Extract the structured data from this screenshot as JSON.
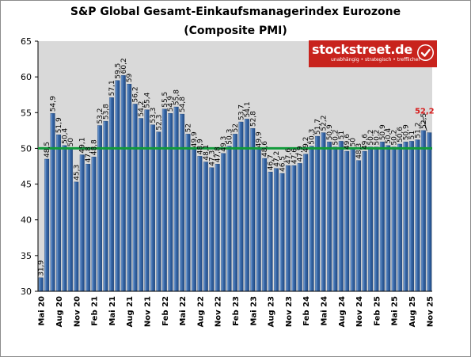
{
  "page": {
    "title_line1": "S&P Global Gesamt-Einkaufsmanagerindex Eurozone",
    "title_line2": "(Composite PMI)"
  },
  "logo": {
    "name": "stockstreet.de",
    "tagline": "unabhängig • strategisch • trefflicher",
    "check_icon": "checkmark-icon"
  },
  "colors": {
    "bar": "#3f6fae",
    "bar_highlight": "#8fb4e3",
    "plot_bg": "#d9d9d9",
    "threshold_line": "#119a3a",
    "last_label": "#d71b1b",
    "brand": "#c8231d"
  },
  "chart_data": {
    "type": "bar",
    "title": "S&P Global Gesamt-Einkaufsmanagerindex Eurozone (Composite PMI)",
    "xlabel": "",
    "ylabel": "",
    "ylim": [
      30,
      65
    ],
    "yticks": [
      30,
      35,
      40,
      45,
      50,
      55,
      60,
      65
    ],
    "grid": false,
    "reference_line": 50,
    "months": [
      "Mai 20",
      "Jun 20",
      "Jul 20",
      "Aug 20",
      "Sep 20",
      "Okt 20",
      "Nov 20",
      "Dez 20",
      "Jan 21",
      "Feb 21",
      "Mrz 21",
      "Apr 21",
      "Mai 21",
      "Jun 21",
      "Jul 21",
      "Aug 21",
      "Sep 21",
      "Okt 21",
      "Nov 21",
      "Dez 21",
      "Jan 22",
      "Feb 22",
      "Mrz 22",
      "Apr 22",
      "Mai 22",
      "Jun 22",
      "Jul 22",
      "Aug 22",
      "Sep 22",
      "Okt 22",
      "Nov 22",
      "Dez 22",
      "Jan 23",
      "Feb 23",
      "Mrz 23",
      "Apr 23",
      "Mai 23",
      "Jun 23",
      "Jul 23",
      "Aug 23",
      "Sep 23",
      "Okt 23",
      "Nov 23",
      "Dez 23",
      "Jan 24",
      "Feb 24",
      "Mrz 24",
      "Apr 24",
      "Mai 24",
      "Jun 24",
      "Jul 24",
      "Aug 24",
      "Sep 24",
      "Okt 24",
      "Nov 24",
      "Dez 24",
      "Jan 25",
      "Feb 25",
      "Mrz 25",
      "Apr 25",
      "Mai 25",
      "Jun 25",
      "Jul 25",
      "Aug 25",
      "Sep 25",
      "Okt 25",
      "Nov 25"
    ],
    "x_tick_labels": [
      "Mai 20",
      "Aug 20",
      "Nov 20",
      "Feb 21",
      "Mai 21",
      "Aug 21",
      "Nov 21",
      "Feb 22",
      "Mai 22",
      "Aug 22",
      "Nov 22",
      "Feb 23",
      "Mai 23",
      "Aug 23",
      "Nov 23",
      "Feb 24",
      "Mai 24",
      "Aug 24",
      "Nov 24",
      "Feb 25",
      "Mai 25",
      "Aug 25",
      "Nov 25"
    ],
    "values": [
      31.9,
      48.5,
      54.9,
      51.9,
      50.4,
      50.0,
      45.3,
      49.1,
      47.8,
      48.8,
      53.2,
      53.8,
      57.1,
      59.5,
      60.2,
      59.0,
      56.2,
      54.2,
      55.4,
      53.3,
      52.3,
      55.5,
      54.9,
      55.8,
      54.8,
      52.0,
      49.9,
      48.9,
      48.1,
      47.3,
      47.8,
      49.3,
      50.3,
      52.0,
      53.7,
      54.1,
      52.8,
      49.9,
      48.6,
      46.7,
      47.2,
      46.5,
      47.6,
      47.6,
      47.9,
      49.2,
      50.3,
      51.7,
      52.2,
      50.9,
      50.2,
      51.0,
      49.6,
      50.0,
      48.3,
      49.6,
      50.2,
      50.2,
      50.9,
      50.4,
      50.2,
      50.6,
      50.9,
      51.0,
      51.2,
      52.5,
      52.2
    ],
    "value_labels": [
      "31,9",
      "48,5",
      "54,9",
      "51,9",
      "50,4",
      "50",
      "45,3",
      "49,1",
      "47,8",
      "48,8",
      "53,2",
      "53,8",
      "57,1",
      "59,5",
      "60,2",
      "59",
      "56,2",
      "54,2",
      "55,4",
      "53,3",
      "52,3",
      "55,5",
      "54,9",
      "55,8",
      "54,8",
      "52",
      "49,9",
      "48,9",
      "48,1",
      "47,3",
      "47,8",
      "49,3",
      "50,3",
      "52",
      "53,7",
      "54,1",
      "52,8",
      "49,9",
      "48,6",
      "46,7",
      "47,2",
      "46,5",
      "47,6",
      "47,6",
      "47,9",
      "49,2",
      "50,3",
      "51,7",
      "52,2",
      "50,9",
      "50,2",
      "51",
      "49,6",
      "50",
      "48,3",
      "49,6",
      "50,2",
      "50,2",
      "50,9",
      "50,4",
      "50,2",
      "50,6",
      "50,9",
      "51",
      "51,2",
      "52,5",
      "52,2"
    ],
    "highlight_last_label": "52,2"
  }
}
